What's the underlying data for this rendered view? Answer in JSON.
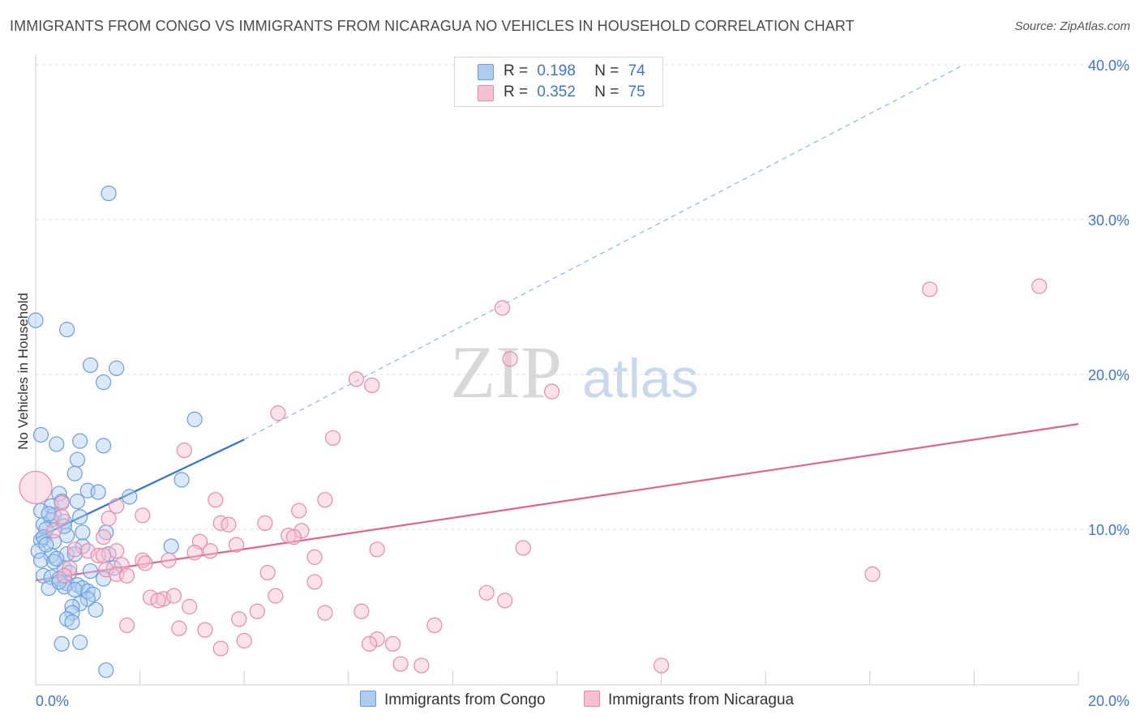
{
  "title": "IMMIGRANTS FROM CONGO VS IMMIGRANTS FROM NICARAGUA NO VEHICLES IN HOUSEHOLD CORRELATION CHART",
  "source": "Source: ZipAtlas.com",
  "watermark": {
    "zip": "ZIP",
    "atlas": "atlas"
  },
  "legend": {
    "rows": [
      {
        "r_label": "R =",
        "r_value": "0.198",
        "n_label": "N =",
        "n_value": "74",
        "fill": "#aecbf0",
        "stroke": "#6a9de0"
      },
      {
        "r_label": "R =",
        "r_value": "0.352",
        "n_label": "N =",
        "n_value": "75",
        "fill": "#f7bfd1",
        "stroke": "#e68aa8"
      }
    ]
  },
  "bottom_legend": [
    {
      "label": "Immigrants from Congo",
      "fill": "#aecbf0",
      "stroke": "#6a9de0"
    },
    {
      "label": "Immigrants from Nicaragua",
      "fill": "#f7bfd1",
      "stroke": "#e68aa8"
    }
  ],
  "chart_data": {
    "type": "scatter",
    "xlabel": "",
    "ylabel": "No Vehicles in Household",
    "xlim": [
      0,
      20
    ],
    "ylim": [
      0,
      40
    ],
    "x_tick_labels": [
      "0.0%",
      "20.0%"
    ],
    "x_tick_values": [
      0,
      20
    ],
    "y_tick_labels": [
      "10.0%",
      "20.0%",
      "30.0%",
      "40.0%"
    ],
    "y_tick_values": [
      10,
      20,
      30,
      40
    ],
    "x_minor_ticks": [
      2,
      4,
      6,
      8,
      10,
      12,
      14,
      16,
      18
    ],
    "grid": true,
    "series": [
      {
        "name": "Immigrants from Congo",
        "color": "#6a9de0",
        "fill": "#aecbf0",
        "line_color": "#2f74d0",
        "trend": {
          "solid": [
            [
              0.0,
              9.4
            ],
            [
              4.0,
              15.8
            ]
          ],
          "dashed": [
            [
              4.0,
              15.8
            ],
            [
              17.8,
              40.0
            ]
          ]
        },
        "points": [
          [
            0.0,
            23.5
          ],
          [
            0.6,
            22.9
          ],
          [
            1.4,
            31.7
          ],
          [
            1.05,
            20.6
          ],
          [
            1.55,
            20.4
          ],
          [
            1.3,
            19.5
          ],
          [
            0.1,
            16.1
          ],
          [
            0.4,
            15.5
          ],
          [
            0.85,
            15.7
          ],
          [
            1.3,
            15.4
          ],
          [
            3.05,
            17.1
          ],
          [
            0.8,
            14.5
          ],
          [
            0.75,
            13.6
          ],
          [
            2.8,
            13.2
          ],
          [
            0.45,
            12.3
          ],
          [
            1.0,
            12.5
          ],
          [
            1.2,
            12.4
          ],
          [
            1.8,
            12.1
          ],
          [
            0.3,
            11.5
          ],
          [
            0.5,
            11.8
          ],
          [
            0.8,
            11.8
          ],
          [
            0.1,
            11.2
          ],
          [
            0.35,
            10.9
          ],
          [
            0.3,
            10.6
          ],
          [
            0.55,
            10.5
          ],
          [
            0.85,
            10.8
          ],
          [
            0.15,
            10.3
          ],
          [
            0.2,
            10.0
          ],
          [
            0.6,
            9.6
          ],
          [
            0.1,
            9.3
          ],
          [
            0.15,
            9.5
          ],
          [
            0.35,
            9.2
          ],
          [
            0.9,
            9.8
          ],
          [
            1.35,
            9.8
          ],
          [
            0.9,
            8.9
          ],
          [
            2.6,
            8.9
          ],
          [
            0.05,
            8.6
          ],
          [
            0.3,
            8.3
          ],
          [
            0.6,
            8.4
          ],
          [
            0.75,
            8.4
          ],
          [
            1.4,
            8.4
          ],
          [
            0.1,
            8.0
          ],
          [
            0.35,
            7.9
          ],
          [
            0.55,
            7.5
          ],
          [
            0.65,
            7.2
          ],
          [
            1.05,
            7.3
          ],
          [
            0.15,
            7.0
          ],
          [
            0.3,
            6.9
          ],
          [
            0.45,
            6.8
          ],
          [
            0.6,
            6.5
          ],
          [
            0.8,
            6.4
          ],
          [
            1.3,
            6.8
          ],
          [
            0.25,
            6.2
          ],
          [
            0.55,
            6.3
          ],
          [
            0.9,
            6.2
          ],
          [
            1.0,
            6.0
          ],
          [
            0.45,
            6.6
          ],
          [
            0.75,
            6.1
          ],
          [
            1.1,
            5.8
          ],
          [
            1.0,
            5.5
          ],
          [
            0.85,
            5.2
          ],
          [
            0.7,
            5.0
          ],
          [
            1.15,
            4.8
          ],
          [
            0.7,
            4.6
          ],
          [
            0.6,
            4.2
          ],
          [
            0.7,
            4.0
          ],
          [
            0.5,
            2.6
          ],
          [
            0.85,
            2.7
          ],
          [
            1.35,
            0.9
          ],
          [
            0.2,
            9.0
          ],
          [
            0.4,
            8.1
          ],
          [
            1.5,
            7.5
          ],
          [
            0.55,
            10.2
          ],
          [
            0.25,
            11.0
          ]
        ]
      },
      {
        "name": "Immigrants from Nicaragua",
        "color": "#e68aa8",
        "fill": "#f7bfd1",
        "line_color": "#e0648f",
        "trend": {
          "solid": [
            [
              0.0,
              6.7
            ],
            [
              20.0,
              16.8
            ]
          ],
          "dashed": []
        },
        "points": [
          [
            0.0,
            12.7
          ],
          [
            8.95,
            24.3
          ],
          [
            17.15,
            25.5
          ],
          [
            19.25,
            25.7
          ],
          [
            9.1,
            21.0
          ],
          [
            6.15,
            19.7
          ],
          [
            6.45,
            19.3
          ],
          [
            9.9,
            18.9
          ],
          [
            4.65,
            17.5
          ],
          [
            5.7,
            15.9
          ],
          [
            2.85,
            15.1
          ],
          [
            3.45,
            11.9
          ],
          [
            5.55,
            11.9
          ],
          [
            0.5,
            11.7
          ],
          [
            1.55,
            11.5
          ],
          [
            2.05,
            10.9
          ],
          [
            5.05,
            11.2
          ],
          [
            1.4,
            10.7
          ],
          [
            0.5,
            10.8
          ],
          [
            3.55,
            10.4
          ],
          [
            3.7,
            10.3
          ],
          [
            4.4,
            10.4
          ],
          [
            5.1,
            9.9
          ],
          [
            0.35,
            9.9
          ],
          [
            1.3,
            9.5
          ],
          [
            3.15,
            9.2
          ],
          [
            4.85,
            9.6
          ],
          [
            4.95,
            9.5
          ],
          [
            3.85,
            9.0
          ],
          [
            6.55,
            8.7
          ],
          [
            9.35,
            8.8
          ],
          [
            0.75,
            8.7
          ],
          [
            1.0,
            8.6
          ],
          [
            1.55,
            8.6
          ],
          [
            3.05,
            8.5
          ],
          [
            3.35,
            8.6
          ],
          [
            1.2,
            8.3
          ],
          [
            1.3,
            8.3
          ],
          [
            2.05,
            8.0
          ],
          [
            5.35,
            8.2
          ],
          [
            0.65,
            7.5
          ],
          [
            1.35,
            7.4
          ],
          [
            2.1,
            7.8
          ],
          [
            1.65,
            7.7
          ],
          [
            2.55,
            8.0
          ],
          [
            0.55,
            7.0
          ],
          [
            1.55,
            7.1
          ],
          [
            1.75,
            7.0
          ],
          [
            4.45,
            7.2
          ],
          [
            5.35,
            6.6
          ],
          [
            16.05,
            7.1
          ],
          [
            8.65,
            5.9
          ],
          [
            2.2,
            5.6
          ],
          [
            2.45,
            5.5
          ],
          [
            2.65,
            5.7
          ],
          [
            4.6,
            5.7
          ],
          [
            2.35,
            5.4
          ],
          [
            2.95,
            5.0
          ],
          [
            4.25,
            4.7
          ],
          [
            5.55,
            4.6
          ],
          [
            6.25,
            4.7
          ],
          [
            3.9,
            4.2
          ],
          [
            1.75,
            3.8
          ],
          [
            2.75,
            3.6
          ],
          [
            3.25,
            3.5
          ],
          [
            7.65,
            3.8
          ],
          [
            6.55,
            2.9
          ],
          [
            6.4,
            2.6
          ],
          [
            6.85,
            2.6
          ],
          [
            3.55,
            2.3
          ],
          [
            4.0,
            2.8
          ],
          [
            7.0,
            1.3
          ],
          [
            7.4,
            1.2
          ],
          [
            12.0,
            1.2
          ],
          [
            9.0,
            5.4
          ]
        ]
      }
    ]
  }
}
